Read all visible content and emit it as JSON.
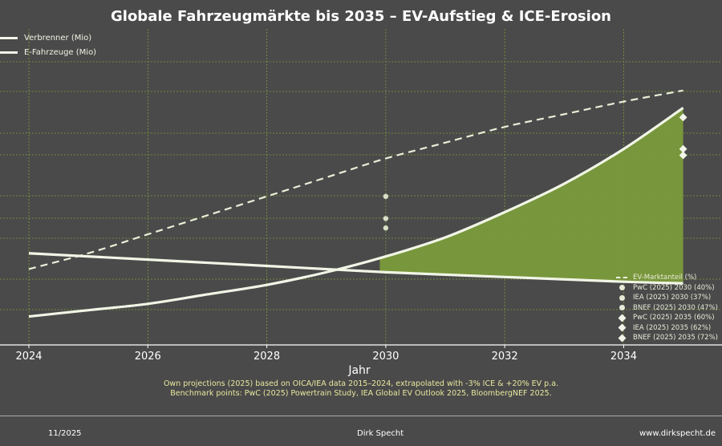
{
  "chart_data": {
    "type": "line",
    "title": "Globale Fahrzeugmärkte bis 2035 – EV-Aufstieg & ICE-Erosion",
    "xlabel": "Jahr",
    "ylabel": "",
    "xlim": [
      2024,
      2035.1
    ],
    "ylim": [
      0,
      100
    ],
    "x_ticks": [
      "2024",
      "2026",
      "2028",
      "2030",
      "2032",
      "2034"
    ],
    "series": [
      {
        "name": "Verbrenner (Mio)",
        "style": "solid",
        "points": [
          [
            2024,
            29
          ],
          [
            2026,
            27
          ],
          [
            2028,
            25
          ],
          [
            2030,
            23
          ],
          [
            2032,
            21.5
          ],
          [
            2034,
            20
          ],
          [
            2035,
            19.5
          ]
        ]
      },
      {
        "name": "E-Fahrzeuge (Mio)",
        "style": "solid",
        "points": [
          [
            2024,
            9
          ],
          [
            2025,
            11
          ],
          [
            2026,
            13
          ],
          [
            2027,
            16
          ],
          [
            2028,
            19
          ],
          [
            2029,
            23
          ],
          [
            2030,
            28
          ],
          [
            2031,
            34
          ],
          [
            2032,
            42
          ],
          [
            2033,
            51
          ],
          [
            2034,
            62
          ],
          [
            2035,
            75
          ]
        ]
      },
      {
        "name": "EV-Marktanteil (%)",
        "style": "dashed",
        "points": [
          [
            2024,
            24
          ],
          [
            2025,
            29
          ],
          [
            2026,
            35
          ],
          [
            2027,
            41
          ],
          [
            2028,
            47
          ],
          [
            2029,
            53
          ],
          [
            2030,
            59
          ],
          [
            2031,
            64
          ],
          [
            2032,
            69
          ],
          [
            2033,
            73
          ],
          [
            2034,
            77
          ],
          [
            2035,
            80.5
          ]
        ]
      }
    ],
    "benchmarks": [
      {
        "label": "PwC (2025) 2030 (40%)",
        "x": 2030,
        "value": 40,
        "marker": "circle"
      },
      {
        "label": "IEA (2025) 2030 (37%)",
        "x": 2030,
        "value": 37,
        "marker": "circle"
      },
      {
        "label": "BNEF (2025) 2030 (47%)",
        "x": 2030,
        "value": 47,
        "marker": "circle"
      },
      {
        "label": "PwC (2025) 2035 (60%)",
        "x": 2035,
        "value": 60,
        "marker": "diamond"
      },
      {
        "label": "IEA (2025) 2035 (62%)",
        "x": 2035,
        "value": 62,
        "marker": "diamond"
      },
      {
        "label": "BNEF (2025) 2035 (72%)",
        "x": 2035,
        "value": 72,
        "marker": "diamond"
      }
    ]
  },
  "legend_left": [
    "Verbrenner (Mio)",
    "E-Fahrzeuge (Mio)"
  ],
  "legend_right_line": "EV-Marktanteil (%)",
  "footnote": {
    "line1": "Own projections (2025) based on OICA/IEA data 2015–2024, extrapolated with -3% ICE & +20% EV p.a.",
    "line2": "Benchmark points: PwC (2025) Powertrain Study, IEA Global EV Outlook 2025, BloombergNEF 2025."
  },
  "footer": {
    "date": "11/2025",
    "author": "Dirk Specht",
    "url": "www.dirkspecht.de"
  },
  "colors": {
    "fill": "#7a9a3a",
    "line": "#f0f5e6",
    "grid": "#7e9a3c",
    "axis": "#ffffff"
  }
}
